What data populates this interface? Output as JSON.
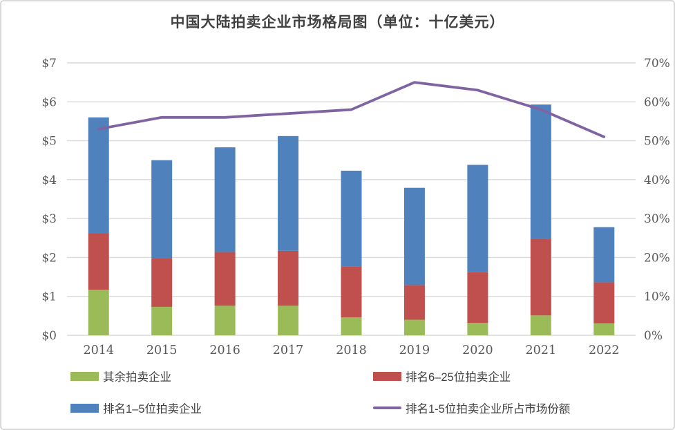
{
  "title": "中国大陆拍卖企业市场格局图（单位：十亿美元）",
  "colors": {
    "other_bar": "#9BBB59",
    "rank6_25_bar": "#C0504D",
    "rank1_5_bar": "#4F81BD",
    "share_line": "#8064A2",
    "gridline": "#D9D9D9",
    "axis_text": "#595959",
    "title_text": "#404040",
    "legend_text": "#404040",
    "border": "#D9D9D9"
  },
  "chart_data": {
    "type": "bar",
    "subtype": "stacked-bar-with-line",
    "title": "中国大陆拍卖企业市场格局图（单位：十亿美元）",
    "categories": [
      "2014",
      "2015",
      "2016",
      "2017",
      "2018",
      "2019",
      "2020",
      "2021",
      "2022"
    ],
    "series": [
      {
        "name": "其余拍卖企业",
        "type": "bar",
        "stacked": true,
        "color": "#9BBB59",
        "axis": "left",
        "values": [
          1.17,
          0.73,
          0.76,
          0.76,
          0.46,
          0.4,
          0.32,
          0.51,
          0.31
        ]
      },
      {
        "name": "排名6–25位拍卖企业",
        "type": "bar",
        "stacked": true,
        "color": "#C0504D",
        "axis": "left",
        "values": [
          1.45,
          1.25,
          1.38,
          1.41,
          1.3,
          0.89,
          1.3,
          1.96,
          1.05
        ]
      },
      {
        "name": "排名1–5位拍卖企业",
        "type": "bar",
        "stacked": true,
        "color": "#4F81BD",
        "axis": "left",
        "values": [
          2.98,
          2.52,
          2.69,
          2.95,
          2.47,
          2.5,
          2.76,
          3.46,
          1.42
        ]
      },
      {
        "name": "排名1-5位拍卖企业所占市场份额",
        "type": "line",
        "color": "#8064A2",
        "axis": "right",
        "values": [
          53,
          56,
          56,
          57,
          58,
          65,
          63,
          58,
          51
        ]
      }
    ],
    "stack_totals": [
      5.6,
      4.5,
      4.83,
      5.12,
      4.23,
      3.79,
      4.38,
      5.93,
      2.78
    ],
    "left_axis": {
      "min": 0,
      "max": 7,
      "step": 1,
      "tick_labels": [
        "$0",
        "$1",
        "$2",
        "$3",
        "$4",
        "$5",
        "$6",
        "$7"
      ]
    },
    "right_axis": {
      "min": 0,
      "max": 70,
      "step": 10,
      "tick_labels": [
        "0%",
        "10%",
        "20%",
        "30%",
        "40%",
        "50%",
        "60%",
        "70%"
      ]
    },
    "grid": "horizontal",
    "legend_position": "bottom"
  },
  "legend": {
    "items": [
      {
        "label": "其余拍卖企业",
        "color": "#9BBB59",
        "shape": "rect"
      },
      {
        "label": "排名6–25位拍卖企业",
        "color": "#C0504D",
        "shape": "rect"
      },
      {
        "label": "排名1–5位拍卖企业",
        "color": "#4F81BD",
        "shape": "rect"
      },
      {
        "label": "排名1-5位拍卖企业所占市场份额",
        "color": "#8064A2",
        "shape": "line"
      }
    ]
  }
}
